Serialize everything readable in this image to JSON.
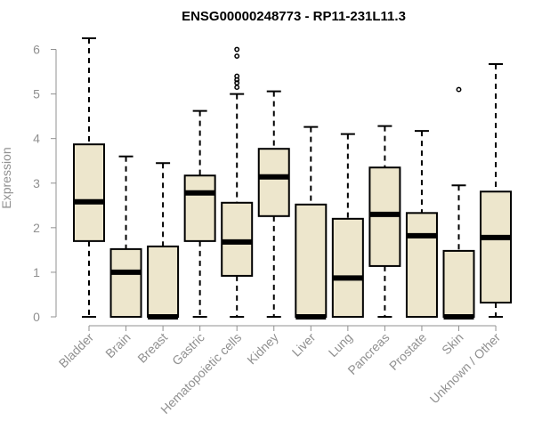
{
  "chart_data": {
    "type": "boxplot",
    "title": "ENSG00000248773 - RP11-231L11.3",
    "xlabel": "",
    "ylabel": "Expression",
    "ylim": [
      0,
      6.25
    ],
    "yticks": [
      0,
      1,
      2,
      3,
      4,
      5,
      6
    ],
    "colors": {
      "box_fill": "#ede6cc",
      "box_stroke": "#000000",
      "axis": "#909090",
      "text": "#909090"
    },
    "categories": [
      "Bladder",
      "Brain",
      "Breast",
      "Gastric",
      "Hematopoietic cells",
      "Kidney",
      "Liver",
      "Lung",
      "Pancreas",
      "Prostate",
      "Skin",
      "Unknown / Other"
    ],
    "series": [
      {
        "name": "Bladder",
        "min": 0,
        "q1": 1.7,
        "median": 2.58,
        "q3": 3.87,
        "max": 6.25,
        "outliers": []
      },
      {
        "name": "Brain",
        "min": 0,
        "q1": 0,
        "median": 1.0,
        "q3": 1.52,
        "max": 3.6,
        "outliers": []
      },
      {
        "name": "Breast",
        "min": 0,
        "q1": 0,
        "median": 0,
        "q3": 1.58,
        "max": 3.45,
        "outliers": []
      },
      {
        "name": "Gastric",
        "min": 0,
        "q1": 1.7,
        "median": 2.78,
        "q3": 3.17,
        "max": 4.62,
        "outliers": []
      },
      {
        "name": "Hematopoietic cells",
        "min": 0,
        "q1": 0.92,
        "median": 1.68,
        "q3": 2.56,
        "max": 5.0,
        "outliers": [
          5.15,
          5.25,
          5.32,
          5.4,
          5.85,
          6.0
        ]
      },
      {
        "name": "Kidney",
        "min": 0,
        "q1": 2.26,
        "median": 3.14,
        "q3": 3.77,
        "max": 5.06,
        "outliers": []
      },
      {
        "name": "Liver",
        "min": 0,
        "q1": 0,
        "median": 0,
        "q3": 2.52,
        "max": 4.26,
        "outliers": []
      },
      {
        "name": "Lung",
        "min": 0,
        "q1": 0,
        "median": 0.87,
        "q3": 2.2,
        "max": 4.1,
        "outliers": []
      },
      {
        "name": "Pancreas",
        "min": 0,
        "q1": 1.14,
        "median": 2.3,
        "q3": 3.35,
        "max": 4.28,
        "outliers": []
      },
      {
        "name": "Prostate",
        "min": 0,
        "q1": 0,
        "median": 1.82,
        "q3": 2.33,
        "max": 4.17,
        "outliers": []
      },
      {
        "name": "Skin",
        "min": 0,
        "q1": 0,
        "median": 0,
        "q3": 1.48,
        "max": 2.95,
        "outliers": [
          5.1
        ]
      },
      {
        "name": "Unknown / Other",
        "min": 0,
        "q1": 0.32,
        "median": 1.78,
        "q3": 2.81,
        "max": 5.67,
        "outliers": []
      }
    ]
  }
}
